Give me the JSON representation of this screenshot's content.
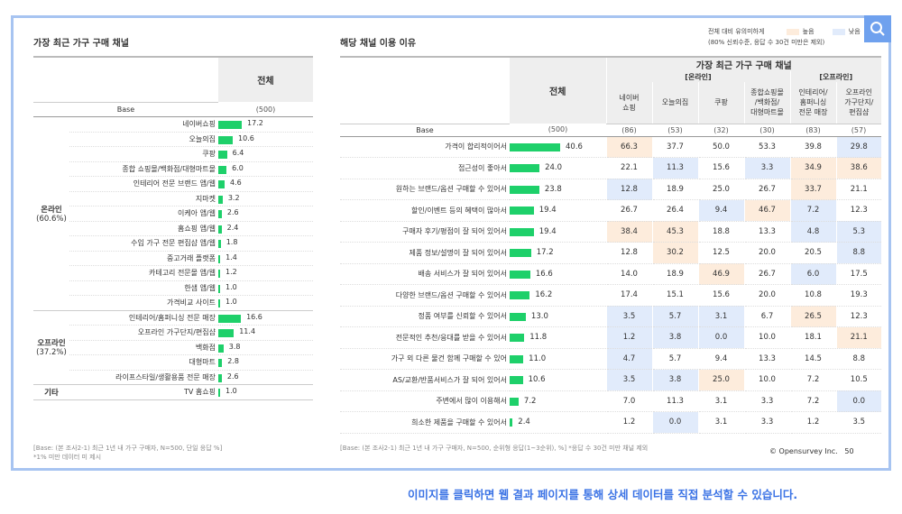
{
  "colors": {
    "bar": "#1ed06a",
    "high": "#fdecdc",
    "low": "#e1ebfb",
    "cta": "#3b73e5",
    "frame": "#a7c4f1"
  },
  "left_title": "가장 최근 가구 구매 채널",
  "right_title": "해당 채널 이용 이유",
  "legend": {
    "label_line1": "전체 대비 유의미하게",
    "label_line2": "(80% 신뢰수준, 응답 수 30건 미만은 제외)",
    "high": "높음",
    "low": "낮음"
  },
  "left_table": {
    "total_header": "전체",
    "base_label": "Base",
    "base_value": "(500)",
    "groups": [
      {
        "name": "온라인",
        "share": "(60.6%)",
        "rows": [
          {
            "label": "네이버쇼핑",
            "value": 17.2
          },
          {
            "label": "오늘의집",
            "value": 10.6
          },
          {
            "label": "쿠팡",
            "value": 6.4
          },
          {
            "label": "종합 쇼핑몰/백화점/대형마트몰",
            "value": 6.0
          },
          {
            "label": "인테리어 전문 브랜드 앱/웹",
            "value": 4.6
          },
          {
            "label": "지마켓",
            "value": 3.2
          },
          {
            "label": "이케아 앱/웹",
            "value": 2.6
          },
          {
            "label": "홈쇼핑 앱/웹",
            "value": 2.4
          },
          {
            "label": "수입 가구 전문 편집샵 앱/웹",
            "value": 1.8
          },
          {
            "label": "중고거래 플랫폼",
            "value": 1.4
          },
          {
            "label": "카테고리 전문몰 앱/웹",
            "value": 1.2
          },
          {
            "label": "한샘 앱/웹",
            "value": 1.0
          },
          {
            "label": "가격비교 사이트",
            "value": 1.0
          }
        ]
      },
      {
        "name": "오프라인",
        "share": "(37.2%)",
        "rows": [
          {
            "label": "인테리어/홈퍼니싱 전문 매장",
            "value": 16.6
          },
          {
            "label": "오프라인 가구단지/편집샵",
            "value": 11.4
          },
          {
            "label": "백화점",
            "value": 3.8
          },
          {
            "label": "대형마트",
            "value": 2.8
          },
          {
            "label": "라이프스타일/생활용품 전문 매장",
            "value": 2.6
          }
        ]
      },
      {
        "name": "기타",
        "share": "",
        "rows": [
          {
            "label": "TV 홈쇼핑",
            "value": 1.0
          }
        ]
      }
    ]
  },
  "right_table": {
    "total_header": "전체",
    "channel_header": "가장 최근 가구 구매 채널",
    "online_header": "[온라인]",
    "offline_header": "[오프라인]",
    "columns": [
      "네이버\n쇼핑",
      "오늘의집",
      "쿠팡",
      "종합쇼핑몰\n/백화점/\n대형마트몰",
      "인테리어/\n홈퍼니싱\n전문 매장",
      "오프라인\n가구단지/\n편집샵"
    ],
    "base_label": "Base",
    "base_total": "(500)",
    "base_cols": [
      "(86)",
      "(53)",
      "(32)",
      "(30)",
      "(83)",
      "(57)"
    ],
    "rows": [
      {
        "label": "가격이 합리적이어서",
        "total": 40.6,
        "cells": [
          "66.3",
          "37.7",
          "50.0",
          "53.3",
          "39.8",
          "29.8"
        ],
        "flags": [
          "h",
          "",
          "",
          "",
          "",
          "l"
        ]
      },
      {
        "label": "접근성이 좋아서",
        "total": 24.0,
        "cells": [
          "22.1",
          "11.3",
          "15.6",
          "3.3",
          "34.9",
          "38.6"
        ],
        "flags": [
          "",
          "l",
          "",
          "l",
          "h",
          "h"
        ]
      },
      {
        "label": "원하는 브랜드/옵션 구매할 수 있어서",
        "total": 23.8,
        "cells": [
          "12.8",
          "18.9",
          "25.0",
          "26.7",
          "33.7",
          "21.1"
        ],
        "flags": [
          "l",
          "",
          "",
          "",
          "h",
          ""
        ]
      },
      {
        "label": "할인/이벤트 등의 혜택이 많아서",
        "total": 19.4,
        "cells": [
          "26.7",
          "26.4",
          "9.4",
          "46.7",
          "7.2",
          "12.3"
        ],
        "flags": [
          "",
          "",
          "l",
          "h",
          "l",
          ""
        ]
      },
      {
        "label": "구매자 후기/평점이 잘 되어 있어서",
        "total": 19.4,
        "cells": [
          "38.4",
          "45.3",
          "18.8",
          "13.3",
          "4.8",
          "5.3"
        ],
        "flags": [
          "h",
          "h",
          "",
          "",
          "l",
          "l"
        ]
      },
      {
        "label": "제품 정보/설명이 잘 되어 있어서",
        "total": 17.2,
        "cells": [
          "12.8",
          "30.2",
          "12.5",
          "20.0",
          "20.5",
          "8.8"
        ],
        "flags": [
          "",
          "h",
          "",
          "",
          "",
          "l"
        ]
      },
      {
        "label": "배송 서비스가 잘 되어 있어서",
        "total": 16.6,
        "cells": [
          "14.0",
          "18.9",
          "46.9",
          "26.7",
          "6.0",
          "17.5"
        ],
        "flags": [
          "",
          "",
          "h",
          "",
          "l",
          ""
        ]
      },
      {
        "label": "다양한 브랜드/옵션 구매할 수 있어서",
        "total": 16.2,
        "cells": [
          "17.4",
          "15.1",
          "15.6",
          "20.0",
          "10.8",
          "19.3"
        ],
        "flags": [
          "",
          "",
          "",
          "",
          "",
          ""
        ]
      },
      {
        "label": "정품 여부를 신뢰할 수 있어서",
        "total": 13.0,
        "cells": [
          "3.5",
          "5.7",
          "3.1",
          "6.7",
          "26.5",
          "12.3"
        ],
        "flags": [
          "l",
          "l",
          "l",
          "",
          "h",
          ""
        ]
      },
      {
        "label": "전문적인 추천/응대를 받을 수 있어서",
        "total": 11.8,
        "cells": [
          "1.2",
          "3.8",
          "0.0",
          "10.0",
          "18.1",
          "21.1"
        ],
        "flags": [
          "l",
          "l",
          "l",
          "",
          "",
          "h"
        ]
      },
      {
        "label": "가구 외 다른 물건 함께 구매할 수 있어",
        "total": 11.0,
        "cells": [
          "4.7",
          "5.7",
          "9.4",
          "13.3",
          "14.5",
          "8.8"
        ],
        "flags": [
          "l",
          "",
          "",
          "",
          "",
          ""
        ]
      },
      {
        "label": "AS/교환/반품서비스가 잘 되어 있어서",
        "total": 10.6,
        "cells": [
          "3.5",
          "3.8",
          "25.0",
          "10.0",
          "7.2",
          "10.5"
        ],
        "flags": [
          "l",
          "l",
          "h",
          "",
          "",
          ""
        ]
      },
      {
        "label": "주변에서 많이 이용해서",
        "total": 7.2,
        "cells": [
          "7.0",
          "11.3",
          "3.1",
          "3.3",
          "7.2",
          "0.0"
        ],
        "flags": [
          "",
          "",
          "",
          "",
          "",
          "l"
        ]
      },
      {
        "label": "희소한 제품을 구매할 수 있어서",
        "total": 2.4,
        "cells": [
          "1.2",
          "0.0",
          "3.1",
          "3.3",
          "1.2",
          "3.5"
        ],
        "flags": [
          "",
          "l",
          "",
          "",
          "",
          ""
        ]
      }
    ]
  },
  "chart_data": [
    {
      "type": "bar",
      "title": "가장 최근 가구 구매 채널",
      "categories": [
        "네이버쇼핑",
        "오늘의집",
        "쿠팡",
        "종합 쇼핑몰/백화점/대형마트몰",
        "인테리어 전문 브랜드 앱/웹",
        "지마켓",
        "이케아 앱/웹",
        "홈쇼핑 앱/웹",
        "수입 가구 전문 편집샵 앱/웹",
        "중고거래 플랫폼",
        "카테고리 전문몰 앱/웹",
        "한샘 앱/웹",
        "가격비교 사이트",
        "인테리어/홈퍼니싱 전문 매장",
        "오프라인 가구단지/편집샵",
        "백화점",
        "대형마트",
        "라이프스타일/생활용품 전문 매장",
        "TV 홈쇼핑"
      ],
      "values": [
        17.2,
        10.6,
        6.4,
        6.0,
        4.6,
        3.2,
        2.6,
        2.4,
        1.8,
        1.4,
        1.2,
        1.0,
        1.0,
        16.6,
        11.4,
        3.8,
        2.8,
        2.6,
        1.0
      ],
      "unit": "%"
    },
    {
      "type": "bar",
      "title": "해당 채널 이용 이유",
      "categories": [
        "가격이 합리적이어서",
        "접근성이 좋아서",
        "원하는 브랜드/옵션 구매할 수 있어서",
        "할인/이벤트 등의 혜택이 많아서",
        "구매자 후기/평점이 잘 되어 있어서",
        "제품 정보/설명이 잘 되어 있어서",
        "배송 서비스가 잘 되어 있어서",
        "다양한 브랜드/옵션 구매할 수 있어서",
        "정품 여부를 신뢰할 수 있어서",
        "전문적인 추천/응대를 받을 수 있어서",
        "가구 외 다른 물건 함께 구매할 수 있어",
        "AS/교환/반품서비스가 잘 되어 있어서",
        "주변에서 많이 이용해서",
        "희소한 제품을 구매할 수 있어서"
      ],
      "values": [
        40.6,
        24.0,
        23.8,
        19.4,
        19.4,
        17.2,
        16.6,
        16.2,
        13.0,
        11.8,
        11.0,
        10.6,
        7.2,
        2.4
      ],
      "unit": "%"
    }
  ],
  "footnote_left": [
    "[Base: (본 조사2-1) 최근 1년 내 가구 구매자, N=500, 단일 응답 %]",
    "*1% 미만 데이터 미 제시"
  ],
  "footnote_right": "[Base: (본 조사2-1) 최근 1년 내 가구 구매자, N=500, 순위형 응답(1~3순위), %] *응답 수 30건 미만 채널 제외",
  "copyright": "© Opensurvey Inc.",
  "page_number": "50",
  "cta": "이미지를 클릭하면 웹 결과 페이지를 통해 상세 데이터를 직접 분석할 수 있습니다."
}
